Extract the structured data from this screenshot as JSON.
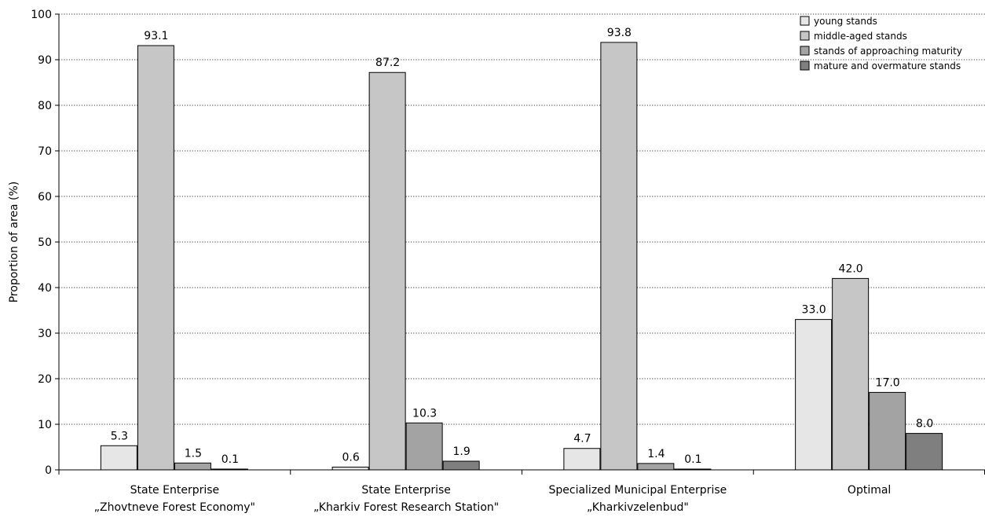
{
  "chart_data": {
    "type": "bar",
    "title": "",
    "xlabel": "",
    "ylabel": "Proportion of area (%)",
    "ylim": [
      0,
      100
    ],
    "yticks": [
      0,
      10,
      20,
      30,
      40,
      50,
      60,
      70,
      80,
      90,
      100
    ],
    "grid": true,
    "legend_position": "top-right",
    "categories": [
      [
        "State Enterprise",
        "„Zhovtneve Forest Economy\""
      ],
      [
        "State Enterprise",
        "„Kharkiv Forest Research Station\""
      ],
      [
        "Specialized Municipal Enterprise",
        "„Kharkivzelenbud\""
      ],
      [
        "Optimal"
      ]
    ],
    "series": [
      {
        "name": "young stands",
        "color": "#e6e6e6",
        "values": [
          5.3,
          0.6,
          4.7,
          33.0
        ],
        "labels": [
          "5.3",
          "0.6",
          "4.7",
          "33.0"
        ]
      },
      {
        "name": "middle-aged stands",
        "color": "#c6c6c6",
        "values": [
          93.1,
          87.2,
          93.8,
          42.0
        ],
        "labels": [
          "93.1",
          "87.2",
          "93.8",
          "42.0"
        ]
      },
      {
        "name": "stands of approaching maturity",
        "color": "#a3a3a3",
        "values": [
          1.5,
          10.3,
          1.4,
          17.0
        ],
        "labels": [
          "1.5",
          "10.3",
          "1.4",
          "17.0"
        ]
      },
      {
        "name": "mature and overmature stands",
        "color": "#7f7f7f",
        "values": [
          0.1,
          1.9,
          0.1,
          8.0
        ],
        "labels": [
          "0.1",
          "1.9",
          "0.1",
          "8.0"
        ]
      }
    ]
  }
}
